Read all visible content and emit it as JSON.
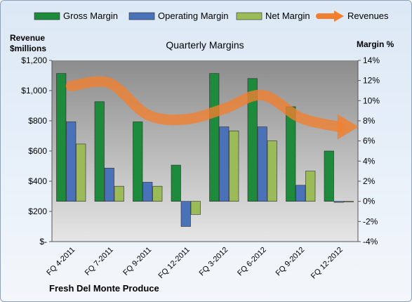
{
  "chart_data": {
    "type": "bar",
    "title": "Quarterly Margins",
    "company": "Fresh Del Monte Produce",
    "left_axis_title": [
      "Revenue",
      "$millions"
    ],
    "right_axis_title": "Margin %",
    "categories": [
      "FQ 4-2011",
      "FQ 7-2011",
      "FQ 9-2011",
      "FQ 12-2011",
      "FQ 3-2012",
      "FQ 6-2012",
      "FQ 9-2012",
      "FQ 12-2012"
    ],
    "left_axis": {
      "min": 0,
      "max": 1200,
      "ticks": [
        0,
        200,
        400,
        600,
        800,
        1000,
        1200
      ],
      "tick_labels": [
        "$-",
        "$200",
        "$400",
        "$600",
        "$800",
        "$1,000",
        "$1,200"
      ]
    },
    "right_axis": {
      "min": -4,
      "max": 14,
      "ticks": [
        -4,
        -2,
        0,
        2,
        4,
        6,
        8,
        10,
        12,
        14
      ],
      "tick_labels": [
        "-4%",
        "-2%",
        "0%",
        "2%",
        "4%",
        "6%",
        "8%",
        "10%",
        "12%",
        "14%"
      ]
    },
    "series": [
      {
        "name": "Gross Margin",
        "kind": "bar",
        "axis": "right",
        "color": "#1e8a3c",
        "values": [
          12.7,
          9.9,
          7.9,
          3.6,
          12.7,
          12.2,
          9.4,
          5.0
        ]
      },
      {
        "name": "Operating Margin",
        "kind": "bar",
        "axis": "right",
        "color": "#4a72b8",
        "values": [
          7.9,
          3.3,
          1.9,
          -2.5,
          7.4,
          7.4,
          1.6,
          -0.1
        ]
      },
      {
        "name": "Net Margin",
        "kind": "bar",
        "axis": "right",
        "color": "#9bbb59",
        "values": [
          5.7,
          1.5,
          1.5,
          -1.3,
          7.0,
          6.0,
          3.0,
          0
        ]
      },
      {
        "name": "Revenues",
        "kind": "line",
        "axis": "left",
        "color": "#f08030",
        "values": [
          1030,
          1050,
          840,
          810,
          880,
          970,
          820,
          760
        ]
      }
    ],
    "legend_position": "top",
    "grid": false
  }
}
